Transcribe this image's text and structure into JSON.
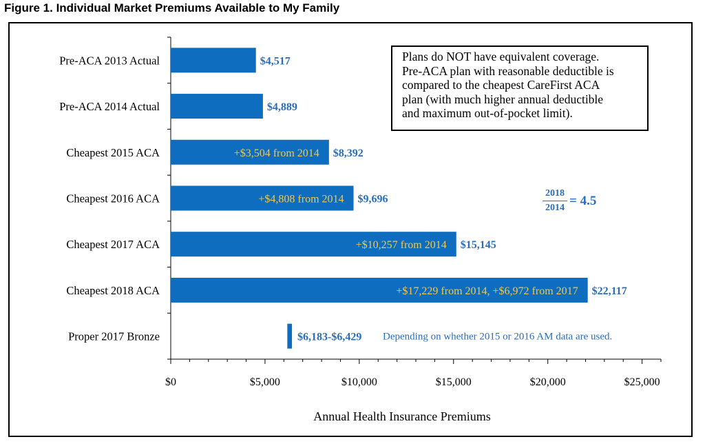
{
  "figure": {
    "title": "Figure 1.  Individual Market Premiums Available to My Family"
  },
  "note": {
    "lines": [
      "Plans do NOT have equivalent coverage.",
      "Pre-ACA plan with reasonable deductible is",
      "compared to the cheapest CareFirst ACA",
      "plan (with much higher annual deductible",
      "and maximum out-of-pocket limit)."
    ]
  },
  "ratio": {
    "numerator": "2018",
    "denominator": "2014",
    "equals": "= 4.5"
  },
  "colors": {
    "bar": "#0f6dbf",
    "value_label": "#2a6ebb",
    "inside_label": "#f2c94c",
    "axis": "#000000"
  },
  "chart_data": {
    "type": "bar",
    "orientation": "horizontal",
    "xlabel": "Annual Health Insurance Premiums",
    "ylabel": "",
    "xlim": [
      0,
      26000
    ],
    "xticks": [
      0,
      5000,
      10000,
      15000,
      20000,
      25000
    ],
    "xtick_labels": [
      "$0",
      "$5,000",
      "$10,000",
      "$15,000",
      "$20,000",
      "$25,000"
    ],
    "grid": false,
    "legend": "none",
    "categories": [
      "Pre-ACA 2013 Actual",
      "Pre-ACA 2014 Actual",
      "Cheapest 2015 ACA",
      "Cheapest 2016 ACA",
      "Cheapest 2017 ACA",
      "Cheapest 2018 ACA",
      "Proper 2017 Bronze"
    ],
    "values": [
      4517,
      4889,
      8392,
      9696,
      15145,
      22117,
      null
    ],
    "range": {
      "category": "Proper 2017 Bronze",
      "low": 6183,
      "high": 6429
    },
    "value_labels": [
      "$4,517",
      "$4,889",
      "$8,392",
      "$9,696",
      "$15,145",
      "$22,117",
      "$6,183-$6,429"
    ],
    "inside_labels": [
      "",
      "",
      "+$3,504 from 2014",
      "+$4,808 from 2014",
      "+$10,257 from 2014",
      "+$17,229 from 2014, +$6,972 from 2017",
      ""
    ],
    "annotation": "Depending on whether 2015 or 2016 AM data are used."
  }
}
